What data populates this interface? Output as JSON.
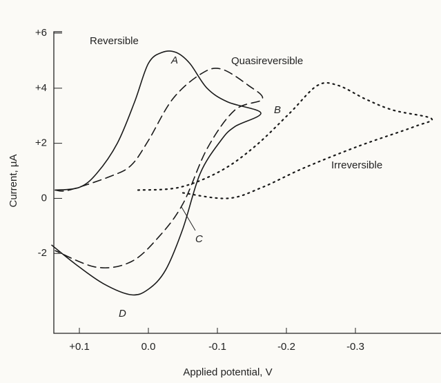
{
  "chart_data": {
    "type": "line",
    "x_label": "Applied potential, V",
    "y_label": "Current, µA",
    "xlim": [
      0.137,
      -0.424
    ],
    "ylim": [
      -4.9,
      6.2
    ],
    "xticks": [
      {
        "value": 0.1,
        "label": "+0.1"
      },
      {
        "value": 0,
        "label": "0.0"
      },
      -0.1,
      -0.2,
      -0.3
    ],
    "yticks": [
      {
        "value": 6,
        "label": "+6"
      },
      {
        "value": 4,
        "label": "+4"
      },
      {
        "value": 2,
        "label": "+2"
      },
      0,
      -2
    ],
    "series": [
      {
        "name": "Reversible",
        "color": "#1a1a1a",
        "style": "solid",
        "x": [
          0.135,
          0.1,
          0.075,
          0.045,
          0.02,
          0.0,
          -0.02,
          -0.04,
          -0.06,
          -0.085,
          -0.115,
          -0.163,
          -0.125,
          -0.105,
          -0.075,
          -0.05,
          -0.025,
          0.0,
          0.025,
          0.065,
          0.105,
          0.14
        ],
        "values": [
          0.3,
          0.4,
          0.9,
          2.0,
          3.5,
          4.9,
          5.3,
          5.3,
          4.9,
          4.0,
          3.5,
          3.1,
          2.6,
          2.1,
          0.9,
          -1.1,
          -2.6,
          -3.3,
          -3.5,
          -3.1,
          -2.4,
          -1.7
        ]
      },
      {
        "name": "Quasireversible",
        "color": "#1a1a1a",
        "style": "dashed",
        "x": [
          0.135,
          0.115,
          0.055,
          0.025,
          0.0,
          -0.035,
          -0.075,
          -0.105,
          -0.145,
          -0.165,
          -0.125,
          -0.085,
          -0.05,
          -0.015,
          0.025,
          0.075,
          0.135
        ],
        "values": [
          0.3,
          0.3,
          0.8,
          1.2,
          2.1,
          3.6,
          4.5,
          4.7,
          4.1,
          3.6,
          3.2,
          1.8,
          -0.2,
          -1.4,
          -2.3,
          -2.5,
          -1.9
        ]
      },
      {
        "name": "Irreversible",
        "color": "#1a1a1a",
        "style": "dotted",
        "x": [
          0.015,
          -0.045,
          -0.105,
          -0.155,
          -0.205,
          -0.245,
          -0.275,
          -0.315,
          -0.355,
          -0.41,
          -0.385,
          -0.305,
          -0.225,
          -0.165,
          -0.115,
          -0.05
        ],
        "values": [
          0.3,
          0.4,
          1.0,
          1.9,
          3.1,
          4.1,
          4.1,
          3.6,
          3.2,
          2.9,
          2.6,
          1.9,
          1.1,
          0.4,
          0.0,
          0.2
        ]
      }
    ],
    "annotations": [
      "A",
      "B",
      "C",
      "D"
    ]
  }
}
